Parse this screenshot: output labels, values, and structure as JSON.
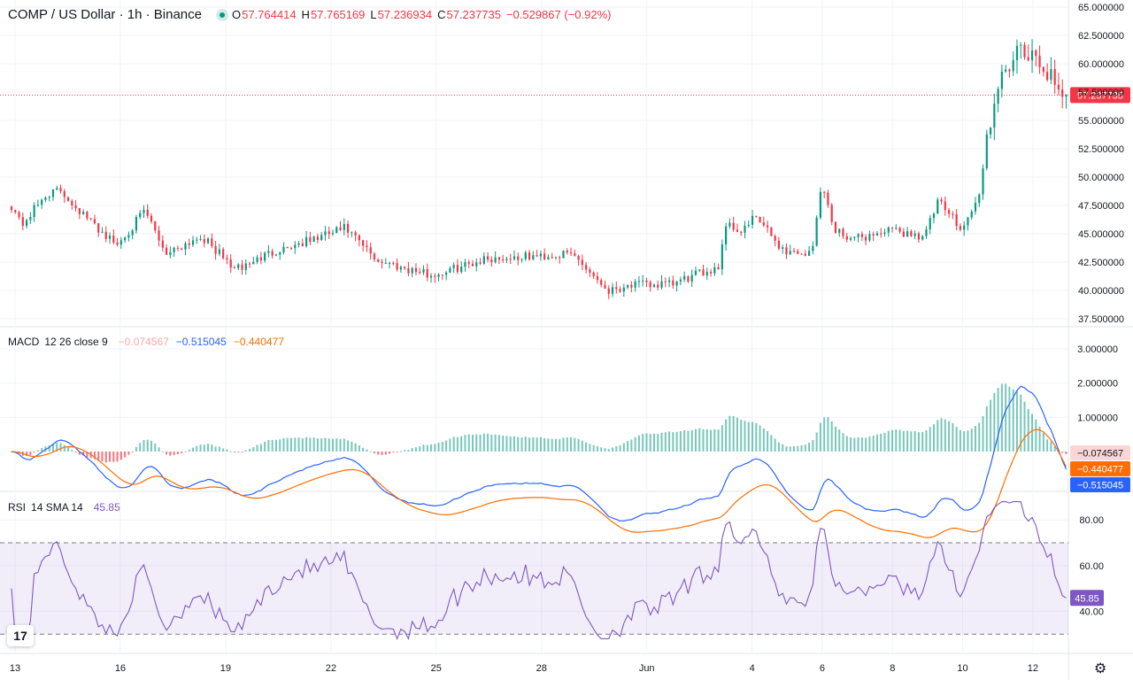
{
  "header": {
    "symbol": "COMP / US Dollar · 1h · Binance",
    "o_label": "O",
    "o_value": "57.764414",
    "h_label": "H",
    "h_value": "57.765169",
    "l_label": "L",
    "l_value": "57.236934",
    "c_label": "C",
    "c_value": "57.237735",
    "change": "−0.529867 (−0.92%)"
  },
  "macd_legend": {
    "name": "MACD",
    "params": "12 26 close 9",
    "hist": "−0.074567",
    "macd": "−0.515045",
    "signal": "−0.440477"
  },
  "rsi_legend": {
    "name": "RSI",
    "params": "14 SMA 14",
    "value": "45.85"
  },
  "colors": {
    "up": "#089981",
    "down": "#f23645",
    "macd": "#2962ff",
    "signal": "#ff6d00",
    "rsi": "#7e57c2",
    "grid": "#f0f3fa"
  },
  "chart_data": [
    {
      "type": "candlestick",
      "title": "COMP / US Dollar · 1h · Binance",
      "x_ticks": [
        "13",
        "16",
        "19",
        "22",
        "25",
        "28",
        "Jun",
        "4",
        "6",
        "8",
        "10",
        "12"
      ],
      "y_ticks": [
        "65.000000",
        "62.500000",
        "60.000000",
        "57.500000",
        "55.000000",
        "52.500000",
        "50.000000",
        "47.500000",
        "45.000000",
        "42.500000",
        "40.000000",
        "37.500000"
      ],
      "ylim": [
        37.5,
        65.0
      ],
      "last_price": 57.237735,
      "last_price_label": "57.237735",
      "anchors": [
        {
          "d": 0,
          "p": 47.5
        },
        {
          "d": 0.3,
          "p": 45.8
        },
        {
          "d": 1.0,
          "p": 48.5
        },
        {
          "d": 1.4,
          "p": 48.8
        },
        {
          "d": 2.2,
          "p": 46.2
        },
        {
          "d": 3.0,
          "p": 44.0
        },
        {
          "d": 3.8,
          "p": 47.0
        },
        {
          "d": 4.4,
          "p": 43.3
        },
        {
          "d": 5.4,
          "p": 44.8
        },
        {
          "d": 6.4,
          "p": 41.8
        },
        {
          "d": 7.5,
          "p": 43.5
        },
        {
          "d": 8.6,
          "p": 44.5
        },
        {
          "d": 9.5,
          "p": 45.5
        },
        {
          "d": 10.4,
          "p": 42.7
        },
        {
          "d": 11.2,
          "p": 42.0
        },
        {
          "d": 12.0,
          "p": 41.3
        },
        {
          "d": 13.5,
          "p": 42.8
        },
        {
          "d": 15.0,
          "p": 43.0
        },
        {
          "d": 16.0,
          "p": 43.2
        },
        {
          "d": 17.0,
          "p": 40.0
        },
        {
          "d": 17.6,
          "p": 40.5
        },
        {
          "d": 18.8,
          "p": 40.5
        },
        {
          "d": 20.2,
          "p": 42.2
        },
        {
          "d": 20.3,
          "p": 46.0
        },
        {
          "d": 20.8,
          "p": 45.2
        },
        {
          "d": 21.2,
          "p": 46.5
        },
        {
          "d": 22.0,
          "p": 43.5
        },
        {
          "d": 22.8,
          "p": 43.2
        },
        {
          "d": 23.1,
          "p": 49.8
        },
        {
          "d": 23.4,
          "p": 45.5
        },
        {
          "d": 24.0,
          "p": 44.5
        },
        {
          "d": 25.0,
          "p": 45.3
        },
        {
          "d": 26.0,
          "p": 44.8
        },
        {
          "d": 26.4,
          "p": 47.8
        },
        {
          "d": 27.1,
          "p": 45.5
        },
        {
          "d": 27.6,
          "p": 48.5
        },
        {
          "d": 27.8,
          "p": 54.0
        },
        {
          "d": 28.0,
          "p": 56.0
        },
        {
          "d": 28.3,
          "p": 59.5
        },
        {
          "d": 28.7,
          "p": 61.0
        },
        {
          "d": 29.2,
          "p": 60.2
        },
        {
          "d": 29.6,
          "p": 59.0
        },
        {
          "d": 29.9,
          "p": 56.5
        },
        {
          "d": 30.05,
          "p": 57.24
        }
      ]
    },
    {
      "type": "line",
      "title": "MACD 12 26 close 9",
      "y_ticks": [
        "3.000000",
        "2.000000",
        "1.000000"
      ],
      "ylim": [
        -1.0,
        3.2
      ],
      "series": [
        {
          "name": "MACD",
          "color": "#2962ff",
          "last": -0.515045,
          "last_label": "−0.515045"
        },
        {
          "name": "Signal",
          "color": "#ff6d00",
          "last": -0.440477,
          "last_label": "−0.440477"
        },
        {
          "name": "Histogram",
          "last": -0.074567,
          "last_label": "−0.074567"
        }
      ]
    },
    {
      "type": "line",
      "title": "RSI 14 SMA 14",
      "y_ticks": [
        "80.00",
        "60.00",
        "40.00"
      ],
      "ylim": [
        25,
        90
      ],
      "band": [
        30,
        70
      ],
      "series": [
        {
          "name": "RSI",
          "color": "#7e57c2",
          "last": 45.85,
          "last_label": "45.85"
        }
      ]
    }
  ]
}
